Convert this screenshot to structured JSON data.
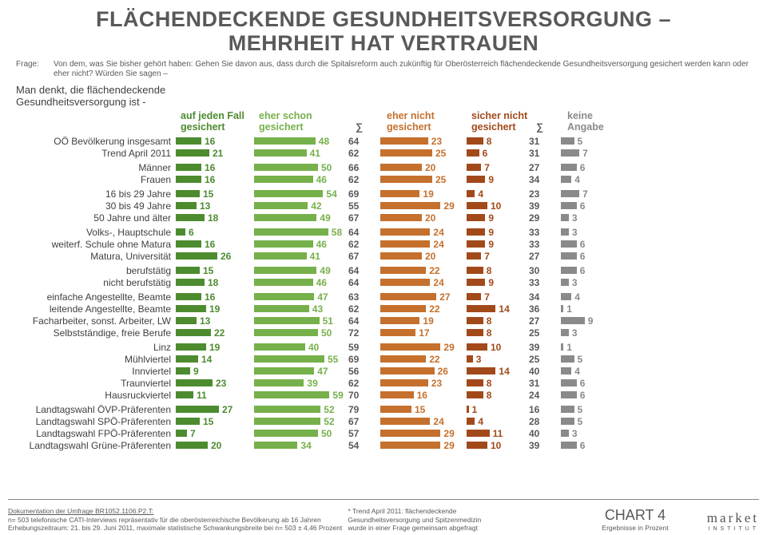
{
  "title_l1": "FLÄCHENDECKENDE GESUNDHEITSVERSORGUNG –",
  "title_l2": "MEHRHEIT HAT VERTRAUEN",
  "question_label": "Frage:",
  "question_text": "Von dem, was Sie bisher gehört haben: Gehen Sie davon aus, dass durch die Spitalsreform auch zukünftig für Oberösterreich flächendeckende Gesundheitsversorgung gesichert werden kann oder eher nicht? Würden Sie sagen –",
  "intro_l1": "Man denkt, die flächendeckende",
  "intro_l2": "Gesundheitsversorgung ist -",
  "columns": {
    "c1": {
      "l1": "auf jeden Fall",
      "l2": "gesichert",
      "color": "#4d8b2f"
    },
    "c2": {
      "l1": "eher schon",
      "l2": "gesichert",
      "color": "#76b04a"
    },
    "c3": {
      "l1": "",
      "l2": "∑",
      "color": "#595959"
    },
    "c4": {
      "l1": "eher nicht",
      "l2": "gesichert",
      "color": "#c5702d"
    },
    "c5": {
      "l1": "sicher nicht",
      "l2": "gesichert",
      "color": "#a2491a"
    },
    "c6": {
      "l1": "",
      "l2": "∑",
      "color": "#595959"
    },
    "c7": {
      "l1": "keine",
      "l2": "Angabe",
      "color": "#8a8a8a"
    }
  },
  "bar_scale": {
    "c1": 2.0,
    "c2": 1.6,
    "c4": 2.6,
    "c5": 2.6,
    "c7": 3.3
  },
  "groups": [
    [
      {
        "label": "OÖ Bevölkerung insgesamt",
        "v": [
          16,
          48,
          64,
          23,
          8,
          31,
          5
        ]
      },
      {
        "label": "Trend April 2011",
        "v": [
          21,
          41,
          62,
          25,
          6,
          31,
          7
        ]
      }
    ],
    [
      {
        "label": "Männer",
        "v": [
          16,
          50,
          66,
          20,
          7,
          27,
          6
        ]
      },
      {
        "label": "Frauen",
        "v": [
          16,
          46,
          62,
          25,
          9,
          34,
          4
        ]
      }
    ],
    [
      {
        "label": "16 bis 29 Jahre",
        "v": [
          15,
          54,
          69,
          19,
          4,
          23,
          7
        ]
      },
      {
        "label": "30 bis 49 Jahre",
        "v": [
          13,
          42,
          55,
          29,
          10,
          39,
          6
        ]
      },
      {
        "label": "50 Jahre und älter",
        "v": [
          18,
          49,
          67,
          20,
          9,
          29,
          3
        ]
      }
    ],
    [
      {
        "label": "Volks-, Hauptschule",
        "v": [
          6,
          58,
          64,
          24,
          9,
          33,
          3
        ]
      },
      {
        "label": "weiterf. Schule ohne Matura",
        "v": [
          16,
          46,
          62,
          24,
          9,
          33,
          6
        ]
      },
      {
        "label": "Matura, Universität",
        "v": [
          26,
          41,
          67,
          20,
          7,
          27,
          6
        ]
      }
    ],
    [
      {
        "label": "berufstätig",
        "v": [
          15,
          49,
          64,
          22,
          8,
          30,
          6
        ]
      },
      {
        "label": "nicht berufstätig",
        "v": [
          18,
          46,
          64,
          24,
          9,
          33,
          3
        ]
      }
    ],
    [
      {
        "label": "einfache Angestellte, Beamte",
        "v": [
          16,
          47,
          63,
          27,
          7,
          34,
          4
        ]
      },
      {
        "label": "leitende Angestellte, Beamte",
        "v": [
          19,
          43,
          62,
          22,
          14,
          36,
          1
        ]
      },
      {
        "label": "Facharbeiter, sonst. Arbeiter, LW",
        "v": [
          13,
          51,
          64,
          19,
          8,
          27,
          9
        ]
      },
      {
        "label": "Selbstständige, freie Berufe",
        "v": [
          22,
          50,
          72,
          17,
          8,
          25,
          3
        ]
      }
    ],
    [
      {
        "label": "Linz",
        "v": [
          19,
          40,
          59,
          29,
          10,
          39,
          1
        ]
      },
      {
        "label": "Mühlviertel",
        "v": [
          14,
          55,
          69,
          22,
          3,
          25,
          5
        ]
      },
      {
        "label": "Innviertel",
        "v": [
          9,
          47,
          56,
          26,
          14,
          40,
          4
        ]
      },
      {
        "label": "Traunviertel",
        "v": [
          23,
          39,
          62,
          23,
          8,
          31,
          6
        ]
      },
      {
        "label": "Hausruckviertel",
        "v": [
          11,
          59,
          70,
          16,
          8,
          24,
          6
        ]
      }
    ],
    [
      {
        "label": "Landtagswahl ÖVP-Präferenten",
        "v": [
          27,
          52,
          79,
          15,
          1,
          16,
          5
        ]
      },
      {
        "label": "Landtagswahl SPÖ-Präferenten",
        "v": [
          15,
          52,
          67,
          24,
          4,
          28,
          5
        ]
      },
      {
        "label": "Landtagswahl FPÖ-Präferenten",
        "v": [
          7,
          50,
          57,
          29,
          11,
          40,
          3
        ]
      },
      {
        "label": "Landtagswahl Grüne-Präferenten",
        "v": [
          20,
          34,
          54,
          29,
          10,
          39,
          6
        ]
      }
    ]
  ],
  "footer": {
    "doc": "Dokumentation der Umfrage BR1052.1106.P2.T:",
    "n": "n= 503 telefonische CATI-Interviews repräsentativ für die oberösterreichische Bevölkerung ab 16 Jahren",
    "erhebung": "Erhebungszeitraum: 21. bis 29. Juni 2011, maximale statistische Schwankungsbreite bei n= 503 ± 4,46 Prozent",
    "trend1": "* Trend April 2011: flächendeckende",
    "trend2": "Gesundheitsversorgung und Spitzenmedizin",
    "trend3": "wurde in einer Frage gemeinsam abgefragt",
    "chart": "CHART 4",
    "ergebnisse": "Ergebnisse in Prozent",
    "logo1": "market",
    "logo2": "INSTITUT"
  }
}
